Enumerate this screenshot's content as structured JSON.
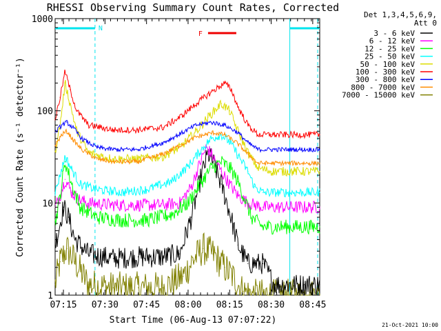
{
  "chart_data": {
    "type": "line",
    "title": "RHESSI Observing Summary Count Rates, Corrected",
    "xlabel": "Start Time (06-Aug-13 07:07:22)",
    "ylabel": "Corrected Count Rate (s⁻¹ detector⁻¹)",
    "y_scale": "log",
    "ylim": [
      1,
      1000
    ],
    "xlim": [
      7.2,
      8.792
    ],
    "x_unit": "hours UT",
    "y_ticks": [
      {
        "value": 1,
        "label": "1"
      },
      {
        "value": 10,
        "label": "10"
      },
      {
        "value": 100,
        "label": "100"
      },
      {
        "value": 1000,
        "label": "1000"
      }
    ],
    "x_ticks": [
      {
        "value": 7.25,
        "label": "07:15"
      },
      {
        "value": 7.5,
        "label": "07:30"
      },
      {
        "value": 7.75,
        "label": "07:45"
      },
      {
        "value": 8.0,
        "label": "08:00"
      },
      {
        "value": 8.25,
        "label": "08:15"
      },
      {
        "value": 8.5,
        "label": "08:30"
      },
      {
        "value": 8.75,
        "label": "08:45"
      }
    ],
    "legend_header": [
      "Det 1,3,4,5,6,9,",
      "Att 0"
    ],
    "legend_position": "right",
    "series": [
      {
        "name": "3 - 6 keV",
        "color": "#000000",
        "noise": 0.12,
        "peak1": 7.26,
        "peak2": 8.13,
        "points": [
          [
            7.2,
            3.5
          ],
          [
            7.22,
            5
          ],
          [
            7.25,
            9
          ],
          [
            7.28,
            7
          ],
          [
            7.32,
            4
          ],
          [
            7.4,
            2.8
          ],
          [
            7.55,
            2.5
          ],
          [
            7.7,
            2.6
          ],
          [
            7.85,
            2.6
          ],
          [
            7.95,
            2.8
          ],
          [
            8.02,
            7
          ],
          [
            8.08,
            20
          ],
          [
            8.12,
            34
          ],
          [
            8.15,
            28
          ],
          [
            8.2,
            16
          ],
          [
            8.25,
            8
          ],
          [
            8.3,
            3.5
          ],
          [
            8.36,
            2.2
          ],
          [
            8.45,
            2.2
          ],
          [
            8.52,
            1.3
          ],
          [
            8.6,
            1.3
          ],
          [
            8.7,
            1.3
          ],
          [
            8.792,
            1.3
          ]
        ]
      },
      {
        "name": "6 - 12 keV",
        "color": "#ff00ff",
        "noise": 0.07,
        "peak1": 7.26,
        "peak2": 8.12,
        "points": [
          [
            7.2,
            9
          ],
          [
            7.23,
            12
          ],
          [
            7.26,
            18
          ],
          [
            7.3,
            13
          ],
          [
            7.34,
            11
          ],
          [
            7.4,
            10
          ],
          [
            7.55,
            9.5
          ],
          [
            7.7,
            9.5
          ],
          [
            7.85,
            9.5
          ],
          [
            7.95,
            10
          ],
          [
            8.02,
            15
          ],
          [
            8.08,
            30
          ],
          [
            8.11,
            40
          ],
          [
            8.14,
            34
          ],
          [
            8.2,
            22
          ],
          [
            8.25,
            16
          ],
          [
            8.3,
            12
          ],
          [
            8.36,
            10
          ],
          [
            8.45,
            9
          ],
          [
            8.6,
            9
          ],
          [
            8.792,
            9
          ]
        ]
      },
      {
        "name": "12 - 25 keV",
        "color": "#00ff00",
        "noise": 0.08,
        "peak1": 7.26,
        "peak2": 8.2,
        "points": [
          [
            7.2,
            6
          ],
          [
            7.23,
            12
          ],
          [
            7.26,
            28
          ],
          [
            7.3,
            16
          ],
          [
            7.35,
            9
          ],
          [
            7.45,
            7
          ],
          [
            7.6,
            6.5
          ],
          [
            7.75,
            6.5
          ],
          [
            7.9,
            7.5
          ],
          [
            8.0,
            10
          ],
          [
            8.08,
            17
          ],
          [
            8.14,
            24
          ],
          [
            8.2,
            28
          ],
          [
            8.26,
            23
          ],
          [
            8.3,
            17
          ],
          [
            8.35,
            10
          ],
          [
            8.38,
            7
          ],
          [
            8.45,
            5.5
          ],
          [
            8.6,
            5.5
          ],
          [
            8.792,
            5.5
          ]
        ]
      },
      {
        "name": "25 - 50 keV",
        "color": "#00ffff",
        "noise": 0.05,
        "peak1": 7.26,
        "peak2": 8.2,
        "points": [
          [
            7.2,
            13
          ],
          [
            7.23,
            20
          ],
          [
            7.26,
            32
          ],
          [
            7.3,
            23
          ],
          [
            7.35,
            16
          ],
          [
            7.45,
            14
          ],
          [
            7.6,
            13
          ],
          [
            7.75,
            14
          ],
          [
            7.9,
            17
          ],
          [
            8.0,
            25
          ],
          [
            8.08,
            38
          ],
          [
            8.14,
            50
          ],
          [
            8.2,
            55
          ],
          [
            8.25,
            46
          ],
          [
            8.3,
            33
          ],
          [
            8.36,
            22
          ],
          [
            8.4,
            15
          ],
          [
            8.45,
            13
          ],
          [
            8.6,
            13
          ],
          [
            8.792,
            13
          ]
        ]
      },
      {
        "name": "50 - 100 keV",
        "color": "#dcdc00",
        "noise": 0.05,
        "peak1": 7.27,
        "peak2": 8.22,
        "points": [
          [
            7.2,
            36
          ],
          [
            7.23,
            70
          ],
          [
            7.26,
            200
          ],
          [
            7.29,
            120
          ],
          [
            7.33,
            60
          ],
          [
            7.4,
            35
          ],
          [
            7.55,
            30
          ],
          [
            7.7,
            30
          ],
          [
            7.85,
            32
          ],
          [
            7.95,
            40
          ],
          [
            8.05,
            60
          ],
          [
            8.12,
            85
          ],
          [
            8.2,
            120
          ],
          [
            8.25,
            100
          ],
          [
            8.3,
            60
          ],
          [
            8.36,
            35
          ],
          [
            8.42,
            24
          ],
          [
            8.5,
            22
          ],
          [
            8.6,
            22
          ],
          [
            8.792,
            22
          ]
        ]
      },
      {
        "name": "100 - 300 keV",
        "color": "#ff0000",
        "noise": 0.035,
        "peak1": 7.27,
        "peak2": 8.24,
        "points": [
          [
            7.2,
            80
          ],
          [
            7.23,
            140
          ],
          [
            7.26,
            270
          ],
          [
            7.29,
            170
          ],
          [
            7.33,
            100
          ],
          [
            7.4,
            70
          ],
          [
            7.55,
            62
          ],
          [
            7.7,
            62
          ],
          [
            7.85,
            66
          ],
          [
            7.95,
            85
          ],
          [
            8.05,
            120
          ],
          [
            8.14,
            160
          ],
          [
            8.22,
            200
          ],
          [
            8.26,
            170
          ],
          [
            8.3,
            110
          ],
          [
            8.36,
            70
          ],
          [
            8.42,
            55
          ],
          [
            8.5,
            55
          ],
          [
            8.6,
            55
          ],
          [
            8.792,
            55
          ]
        ]
      },
      {
        "name": "300 - 800 keV",
        "color": "#0000ff",
        "noise": 0.025,
        "peak1": 7.26,
        "peak2": 8.14,
        "points": [
          [
            7.2,
            58
          ],
          [
            7.24,
            70
          ],
          [
            7.27,
            75
          ],
          [
            7.31,
            65
          ],
          [
            7.36,
            50
          ],
          [
            7.45,
            40
          ],
          [
            7.55,
            38
          ],
          [
            7.7,
            38
          ],
          [
            7.85,
            45
          ],
          [
            7.95,
            56
          ],
          [
            8.05,
            70
          ],
          [
            8.14,
            75
          ],
          [
            8.22,
            70
          ],
          [
            8.3,
            58
          ],
          [
            8.36,
            45
          ],
          [
            8.42,
            38
          ],
          [
            8.5,
            38
          ],
          [
            8.6,
            38
          ],
          [
            8.792,
            38
          ]
        ]
      },
      {
        "name": "800 - 7000 keV",
        "color": "#ff8c00",
        "noise": 0.025,
        "peak1": 7.27,
        "peak2": 8.16,
        "points": [
          [
            7.2,
            42
          ],
          [
            7.24,
            55
          ],
          [
            7.27,
            60
          ],
          [
            7.31,
            48
          ],
          [
            7.36,
            38
          ],
          [
            7.45,
            30
          ],
          [
            7.55,
            28
          ],
          [
            7.7,
            28
          ],
          [
            7.85,
            34
          ],
          [
            7.95,
            42
          ],
          [
            8.05,
            52
          ],
          [
            8.15,
            58
          ],
          [
            8.22,
            55
          ],
          [
            8.3,
            44
          ],
          [
            8.36,
            34
          ],
          [
            8.42,
            27
          ],
          [
            8.5,
            27
          ],
          [
            8.6,
            27
          ],
          [
            8.792,
            27
          ]
        ]
      },
      {
        "name": "7000 - 15000 keV",
        "color": "#808000",
        "noise": 0.18,
        "peak1": 7.26,
        "peak2": 8.1,
        "points": [
          [
            7.2,
            1.3
          ],
          [
            7.23,
            2.3
          ],
          [
            7.27,
            3.2
          ],
          [
            7.32,
            2.3
          ],
          [
            7.4,
            1.3
          ],
          [
            7.55,
            1.2
          ],
          [
            7.7,
            1.2
          ],
          [
            7.85,
            1.2
          ],
          [
            7.97,
            1.6
          ],
          [
            8.03,
            2.4
          ],
          [
            8.09,
            3.2
          ],
          [
            8.15,
            2.8
          ],
          [
            8.22,
            2.0
          ],
          [
            8.28,
            1.5
          ],
          [
            8.33,
            1.1
          ],
          [
            8.4,
            1.0
          ],
          [
            8.6,
            1.0
          ],
          [
            8.792,
            1.0
          ]
        ]
      }
    ],
    "annotations": {
      "night_marker": {
        "label": "N",
        "color": "#00e5ee",
        "bars": [
          [
            7.2,
            7.44
          ],
          [
            8.612,
            8.792
          ]
        ],
        "dashed_lines": [
          7.44,
          8.792
        ],
        "solid_lines": [
          8.612
        ]
      },
      "flare_marker": {
        "label": "F",
        "color": "#ee0000",
        "bar": [
          8.12,
          8.29
        ]
      }
    },
    "timestamp": "21-Oct-2021 10:00"
  }
}
